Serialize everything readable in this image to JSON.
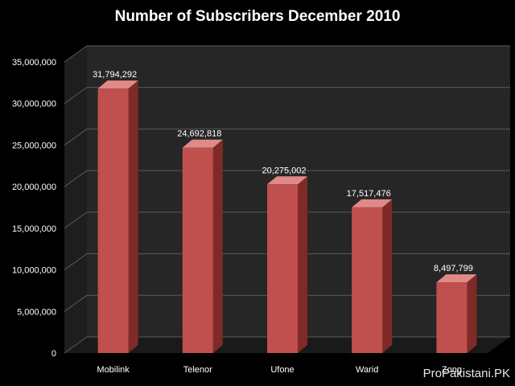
{
  "chart_data": {
    "type": "bar",
    "title": "Number of Subscribers December 2010",
    "categories": [
      "Mobilink",
      "Telenor",
      "Ufone",
      "Warid",
      "Zong"
    ],
    "values": [
      31794292,
      24692818,
      20275002,
      17517476,
      8497799
    ],
    "data_labels": [
      "31,794,292",
      "24,692,818",
      "20,275,002",
      "17,517,476",
      "8,497,799"
    ],
    "y_ticks": [
      0,
      5000000,
      10000000,
      15000000,
      20000000,
      25000000,
      30000000,
      35000000
    ],
    "y_tick_labels": [
      "0",
      "5,000,000",
      "10,000,000",
      "15,000,000",
      "20,000,000",
      "25,000,000",
      "30,000,000",
      "35,000,000"
    ],
    "ylim": [
      0,
      35000000
    ],
    "xlabel": "",
    "ylabel": "",
    "grid": true,
    "three_d": true,
    "bar_color": "#c0504d",
    "bar_side_color": "#7f2a28",
    "bar_top_color": "#e08a87",
    "wall_color": "#262626",
    "floor_color": "#1a1a1a",
    "grid_color": "#5a5a5a"
  },
  "watermark": "ProPakistani.PK"
}
